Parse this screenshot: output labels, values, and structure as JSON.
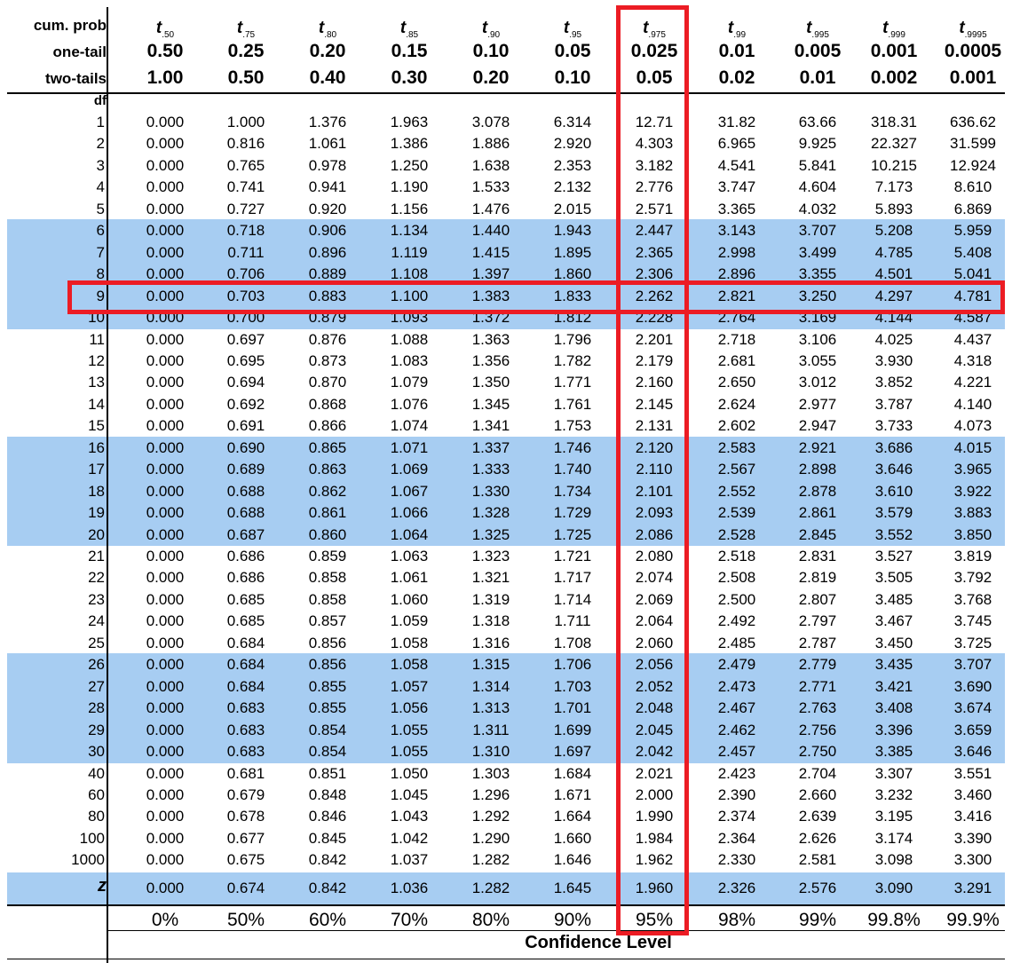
{
  "header": {
    "cum_prob_label": "cum. prob",
    "one_tail_label": "one-tail",
    "two_tails_label": "two-tails",
    "df_label": "df",
    "t_subscripts": [
      ".50",
      ".75",
      ".80",
      ".85",
      ".90",
      ".95",
      ".975",
      ".99",
      ".995",
      ".999",
      ".9995"
    ],
    "one_tail": [
      "0.50",
      "0.25",
      "0.20",
      "0.15",
      "0.10",
      "0.05",
      "0.025",
      "0.01",
      "0.005",
      "0.001",
      "0.0005"
    ],
    "two_tails": [
      "1.00",
      "0.50",
      "0.40",
      "0.30",
      "0.20",
      "0.10",
      "0.05",
      "0.02",
      "0.01",
      "0.002",
      "0.001"
    ]
  },
  "rows": [
    {
      "df": "1",
      "values": [
        "0.000",
        "1.000",
        "1.376",
        "1.963",
        "3.078",
        "6.314",
        "12.71",
        "31.82",
        "63.66",
        "318.31",
        "636.62"
      ]
    },
    {
      "df": "2",
      "values": [
        "0.000",
        "0.816",
        "1.061",
        "1.386",
        "1.886",
        "2.920",
        "4.303",
        "6.965",
        "9.925",
        "22.327",
        "31.599"
      ]
    },
    {
      "df": "3",
      "values": [
        "0.000",
        "0.765",
        "0.978",
        "1.250",
        "1.638",
        "2.353",
        "3.182",
        "4.541",
        "5.841",
        "10.215",
        "12.924"
      ]
    },
    {
      "df": "4",
      "values": [
        "0.000",
        "0.741",
        "0.941",
        "1.190",
        "1.533",
        "2.132",
        "2.776",
        "3.747",
        "4.604",
        "7.173",
        "8.610"
      ]
    },
    {
      "df": "5",
      "values": [
        "0.000",
        "0.727",
        "0.920",
        "1.156",
        "1.476",
        "2.015",
        "2.571",
        "3.365",
        "4.032",
        "5.893",
        "6.869"
      ]
    },
    {
      "df": "6",
      "values": [
        "0.000",
        "0.718",
        "0.906",
        "1.134",
        "1.440",
        "1.943",
        "2.447",
        "3.143",
        "3.707",
        "5.208",
        "5.959"
      ]
    },
    {
      "df": "7",
      "values": [
        "0.000",
        "0.711",
        "0.896",
        "1.119",
        "1.415",
        "1.895",
        "2.365",
        "2.998",
        "3.499",
        "4.785",
        "5.408"
      ]
    },
    {
      "df": "8",
      "values": [
        "0.000",
        "0.706",
        "0.889",
        "1.108",
        "1.397",
        "1.860",
        "2.306",
        "2.896",
        "3.355",
        "4.501",
        "5.041"
      ]
    },
    {
      "df": "9",
      "values": [
        "0.000",
        "0.703",
        "0.883",
        "1.100",
        "1.383",
        "1.833",
        "2.262",
        "2.821",
        "3.250",
        "4.297",
        "4.781"
      ]
    },
    {
      "df": "10",
      "values": [
        "0.000",
        "0.700",
        "0.879",
        "1.093",
        "1.372",
        "1.812",
        "2.228",
        "2.764",
        "3.169",
        "4.144",
        "4.587"
      ]
    },
    {
      "df": "11",
      "values": [
        "0.000",
        "0.697",
        "0.876",
        "1.088",
        "1.363",
        "1.796",
        "2.201",
        "2.718",
        "3.106",
        "4.025",
        "4.437"
      ]
    },
    {
      "df": "12",
      "values": [
        "0.000",
        "0.695",
        "0.873",
        "1.083",
        "1.356",
        "1.782",
        "2.179",
        "2.681",
        "3.055",
        "3.930",
        "4.318"
      ]
    },
    {
      "df": "13",
      "values": [
        "0.000",
        "0.694",
        "0.870",
        "1.079",
        "1.350",
        "1.771",
        "2.160",
        "2.650",
        "3.012",
        "3.852",
        "4.221"
      ]
    },
    {
      "df": "14",
      "values": [
        "0.000",
        "0.692",
        "0.868",
        "1.076",
        "1.345",
        "1.761",
        "2.145",
        "2.624",
        "2.977",
        "3.787",
        "4.140"
      ]
    },
    {
      "df": "15",
      "values": [
        "0.000",
        "0.691",
        "0.866",
        "1.074",
        "1.341",
        "1.753",
        "2.131",
        "2.602",
        "2.947",
        "3.733",
        "4.073"
      ]
    },
    {
      "df": "16",
      "values": [
        "0.000",
        "0.690",
        "0.865",
        "1.071",
        "1.337",
        "1.746",
        "2.120",
        "2.583",
        "2.921",
        "3.686",
        "4.015"
      ]
    },
    {
      "df": "17",
      "values": [
        "0.000",
        "0.689",
        "0.863",
        "1.069",
        "1.333",
        "1.740",
        "2.110",
        "2.567",
        "2.898",
        "3.646",
        "3.965"
      ]
    },
    {
      "df": "18",
      "values": [
        "0.000",
        "0.688",
        "0.862",
        "1.067",
        "1.330",
        "1.734",
        "2.101",
        "2.552",
        "2.878",
        "3.610",
        "3.922"
      ]
    },
    {
      "df": "19",
      "values": [
        "0.000",
        "0.688",
        "0.861",
        "1.066",
        "1.328",
        "1.729",
        "2.093",
        "2.539",
        "2.861",
        "3.579",
        "3.883"
      ]
    },
    {
      "df": "20",
      "values": [
        "0.000",
        "0.687",
        "0.860",
        "1.064",
        "1.325",
        "1.725",
        "2.086",
        "2.528",
        "2.845",
        "3.552",
        "3.850"
      ]
    },
    {
      "df": "21",
      "values": [
        "0.000",
        "0.686",
        "0.859",
        "1.063",
        "1.323",
        "1.721",
        "2.080",
        "2.518",
        "2.831",
        "3.527",
        "3.819"
      ]
    },
    {
      "df": "22",
      "values": [
        "0.000",
        "0.686",
        "0.858",
        "1.061",
        "1.321",
        "1.717",
        "2.074",
        "2.508",
        "2.819",
        "3.505",
        "3.792"
      ]
    },
    {
      "df": "23",
      "values": [
        "0.000",
        "0.685",
        "0.858",
        "1.060",
        "1.319",
        "1.714",
        "2.069",
        "2.500",
        "2.807",
        "3.485",
        "3.768"
      ]
    },
    {
      "df": "24",
      "values": [
        "0.000",
        "0.685",
        "0.857",
        "1.059",
        "1.318",
        "1.711",
        "2.064",
        "2.492",
        "2.797",
        "3.467",
        "3.745"
      ]
    },
    {
      "df": "25",
      "values": [
        "0.000",
        "0.684",
        "0.856",
        "1.058",
        "1.316",
        "1.708",
        "2.060",
        "2.485",
        "2.787",
        "3.450",
        "3.725"
      ]
    },
    {
      "df": "26",
      "values": [
        "0.000",
        "0.684",
        "0.856",
        "1.058",
        "1.315",
        "1.706",
        "2.056",
        "2.479",
        "2.779",
        "3.435",
        "3.707"
      ]
    },
    {
      "df": "27",
      "values": [
        "0.000",
        "0.684",
        "0.855",
        "1.057",
        "1.314",
        "1.703",
        "2.052",
        "2.473",
        "2.771",
        "3.421",
        "3.690"
      ]
    },
    {
      "df": "28",
      "values": [
        "0.000",
        "0.683",
        "0.855",
        "1.056",
        "1.313",
        "1.701",
        "2.048",
        "2.467",
        "2.763",
        "3.408",
        "3.674"
      ]
    },
    {
      "df": "29",
      "values": [
        "0.000",
        "0.683",
        "0.854",
        "1.055",
        "1.311",
        "1.699",
        "2.045",
        "2.462",
        "2.756",
        "3.396",
        "3.659"
      ]
    },
    {
      "df": "30",
      "values": [
        "0.000",
        "0.683",
        "0.854",
        "1.055",
        "1.310",
        "1.697",
        "2.042",
        "2.457",
        "2.750",
        "3.385",
        "3.646"
      ]
    },
    {
      "df": "40",
      "values": [
        "0.000",
        "0.681",
        "0.851",
        "1.050",
        "1.303",
        "1.684",
        "2.021",
        "2.423",
        "2.704",
        "3.307",
        "3.551"
      ]
    },
    {
      "df": "60",
      "values": [
        "0.000",
        "0.679",
        "0.848",
        "1.045",
        "1.296",
        "1.671",
        "2.000",
        "2.390",
        "2.660",
        "3.232",
        "3.460"
      ]
    },
    {
      "df": "80",
      "values": [
        "0.000",
        "0.678",
        "0.846",
        "1.043",
        "1.292",
        "1.664",
        "1.990",
        "2.374",
        "2.639",
        "3.195",
        "3.416"
      ]
    },
    {
      "df": "100",
      "values": [
        "0.000",
        "0.677",
        "0.845",
        "1.042",
        "1.290",
        "1.660",
        "1.984",
        "2.364",
        "2.626",
        "3.174",
        "3.390"
      ]
    },
    {
      "df": "1000",
      "values": [
        "0.000",
        "0.675",
        "0.842",
        "1.037",
        "1.282",
        "1.646",
        "1.962",
        "2.330",
        "2.581",
        "3.098",
        "3.300"
      ]
    }
  ],
  "z_row": {
    "label": "z",
    "values": [
      "0.000",
      "0.674",
      "0.842",
      "1.036",
      "1.282",
      "1.645",
      "1.960",
      "2.326",
      "2.576",
      "3.090",
      "3.291"
    ]
  },
  "confidence": {
    "levels": [
      "0%",
      "50%",
      "60%",
      "70%",
      "80%",
      "90%",
      "95%",
      "98%",
      "99%",
      "99.8%",
      "99.9%"
    ],
    "title": "Confidence Level"
  },
  "colors": {
    "band": "#a7cdf2",
    "highlight": "#ec1c24"
  },
  "highlights": {
    "column_subscript": ".975",
    "row_df": "9"
  }
}
